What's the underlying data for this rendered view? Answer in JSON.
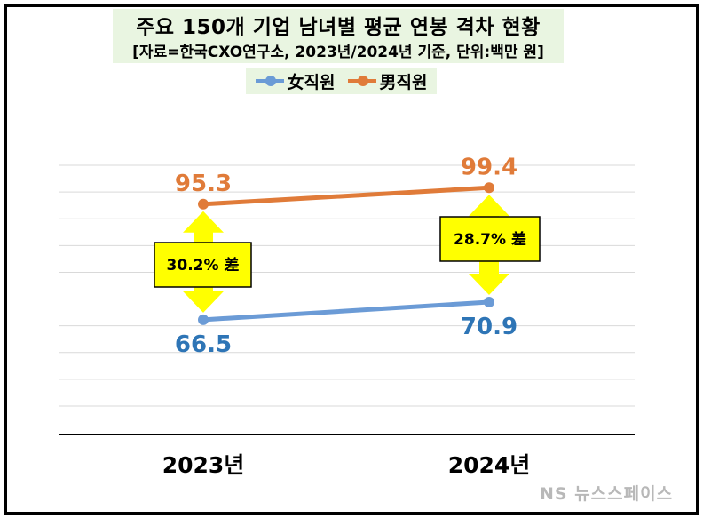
{
  "title": "주요 150개 기업 남녀별 평균 연봉 격차 현황",
  "subtitle": "[자료=한국CXO연구소, 2023년/2024년 기준, 단위:백만 원]",
  "watermark": "NS 뉴스스페이스",
  "colors": {
    "female": "#6b9bd6",
    "male": "#e07b39",
    "female_label": "#2e75b6",
    "male_label": "#e07b39",
    "arrow": "#ffff00",
    "gap_box": "#ffff00"
  },
  "chart_data": {
    "type": "line",
    "categories": [
      "2023년",
      "2024년"
    ],
    "series": [
      {
        "name": "女직원",
        "values": [
          66.5,
          70.9
        ],
        "labels": [
          "66.5",
          "70.9"
        ]
      },
      {
        "name": "男직원",
        "values": [
          95.3,
          99.4
        ],
        "labels": [
          "95.3",
          "99.4"
        ]
      }
    ],
    "annotations": [
      "30.2% 差",
      "28.7% 差"
    ],
    "ylim": [
      45,
      105
    ],
    "grid": true,
    "legend": "top-center"
  }
}
